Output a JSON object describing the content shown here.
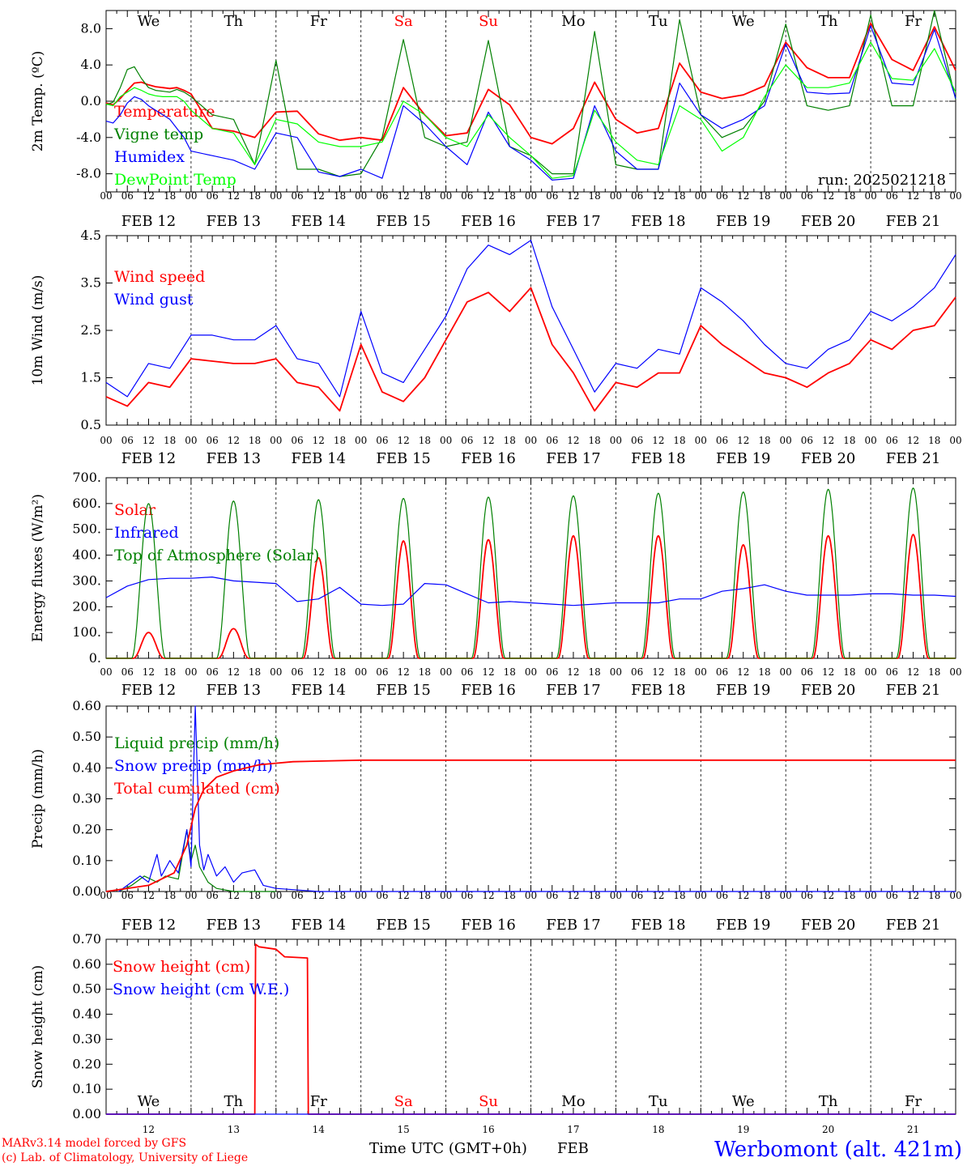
{
  "chart_data": [
    {
      "type": "line",
      "ylabel": "2m Temp. (ºC)",
      "ylim": [
        -10,
        10
      ],
      "yticks": [
        -8,
        -4,
        0,
        4,
        8
      ],
      "ytick_labels": [
        "-8.0",
        "-4.0",
        "0.0",
        "4.0",
        "8.0"
      ],
      "zero_line": true,
      "legend_placement": "top-left",
      "series": [
        {
          "name": "Temperature",
          "color": "#ff0000",
          "x": [
            0,
            0.083,
            0.167,
            0.25,
            0.333,
            0.417,
            0.5,
            0.583,
            0.667,
            0.75,
            0.833,
            0.917,
            1,
            1.25,
            1.5,
            1.75,
            2,
            2.25,
            2.5,
            2.75,
            3,
            3.25,
            3.5,
            3.75,
            4,
            4.25,
            4.5,
            4.75,
            5,
            5.25,
            5.5,
            5.75,
            6,
            6.25,
            6.5,
            6.75,
            7,
            7.25,
            7.5,
            7.75,
            8,
            8.25,
            8.5,
            8.75,
            9,
            9.25,
            9.5,
            9.75,
            10
          ],
          "values": [
            -0.2,
            -0.4,
            0.3,
            1.2,
            2,
            2.1,
            1.8,
            1.6,
            1.5,
            1.4,
            1.5,
            1.2,
            0.8,
            -3,
            -3.3,
            -4,
            -1.2,
            -1.1,
            -3.6,
            -4.3,
            -4,
            -4.3,
            1.5,
            -1.5,
            -3.8,
            -3.5,
            1.3,
            -0.4,
            -4,
            -4.7,
            -3,
            2.1,
            -2,
            -3.5,
            -3,
            4.2,
            1,
            0.3,
            0.7,
            1.7,
            6.5,
            3.7,
            2.6,
            2.6,
            8.6,
            4.6,
            3.4,
            8.2,
            3.4
          ]
        },
        {
          "name": "Vigne temp",
          "color": "#008000",
          "x": [
            0,
            0.083,
            0.167,
            0.25,
            0.333,
            0.417,
            0.5,
            0.583,
            0.667,
            0.75,
            0.833,
            0.917,
            1,
            1.25,
            1.5,
            1.75,
            2,
            2.25,
            2.5,
            2.75,
            3,
            3.25,
            3.5,
            3.75,
            4,
            4.25,
            4.5,
            4.75,
            5,
            5.25,
            5.5,
            5.75,
            6,
            6.25,
            6.5,
            6.75,
            7,
            7.25,
            7.5,
            7.75,
            8,
            8.25,
            8.5,
            8.75,
            9,
            9.25,
            9.5,
            9.75,
            10
          ],
          "values": [
            -0.4,
            -0.1,
            1.5,
            3.5,
            3.8,
            2.5,
            1.5,
            1.2,
            1.1,
            1,
            1.3,
            1,
            0.5,
            -1.5,
            -2,
            -7,
            4.5,
            -7.5,
            -7.5,
            -8.3,
            -8,
            -4,
            6.8,
            -4,
            -5,
            -4.5,
            6.7,
            -5,
            -6,
            -8,
            -8,
            7.7,
            -7,
            -7.5,
            -7.5,
            9,
            -1.5,
            -4,
            -3,
            0,
            8.5,
            -0.5,
            -1,
            -0.5,
            9.5,
            -0.5,
            -0.5,
            10,
            0.2
          ]
        },
        {
          "name": "Humidex",
          "color": "#0000ff",
          "x": [
            0,
            0.083,
            0.167,
            0.25,
            0.333,
            0.417,
            0.5,
            0.583,
            0.667,
            0.75,
            0.833,
            0.917,
            1,
            1.25,
            1.5,
            1.75,
            2,
            2.25,
            2.5,
            2.75,
            3,
            3.25,
            3.5,
            3.75,
            4,
            4.25,
            4.5,
            4.75,
            5,
            5.25,
            5.5,
            5.75,
            6,
            6.25,
            6.5,
            6.75,
            7,
            7.25,
            7.5,
            7.75,
            8,
            8.25,
            8.5,
            8.75,
            9,
            9.25,
            9.5,
            9.75,
            10
          ],
          "values": [
            -2.2,
            -2.4,
            -1.5,
            -0.2,
            0.5,
            0.2,
            -0.5,
            -1,
            -1.5,
            -2,
            -3,
            -4,
            -5.5,
            -6,
            -6.5,
            -7.5,
            -3.5,
            -4,
            -7.8,
            -8.3,
            -7.5,
            -8.5,
            -0.5,
            -2.5,
            -5,
            -7,
            -1.2,
            -5,
            -6.5,
            -8.7,
            -8.5,
            -0.5,
            -5.5,
            -7.5,
            -7.5,
            2,
            -1.5,
            -3,
            -2,
            -0.5,
            6.3,
            1,
            0.8,
            0.9,
            8.3,
            2,
            1.8,
            7.9,
            0.3
          ]
        },
        {
          "name": "DewPoint Temp",
          "color": "#00ff00",
          "x": [
            0,
            0.083,
            0.167,
            0.25,
            0.333,
            0.417,
            0.5,
            0.583,
            0.667,
            0.75,
            0.833,
            0.917,
            1,
            1.25,
            1.5,
            1.75,
            2,
            2.25,
            2.5,
            2.75,
            3,
            3.25,
            3.5,
            3.75,
            4,
            4.25,
            4.5,
            4.75,
            5,
            5.25,
            5.5,
            5.75,
            6,
            6.25,
            6.5,
            6.75,
            7,
            7.25,
            7.5,
            7.75,
            8,
            8.25,
            8.5,
            8.75,
            9,
            9.25,
            9.5,
            9.75,
            10
          ],
          "values": [
            -0.3,
            -0.5,
            0.5,
            1,
            1.5,
            1.2,
            0.8,
            0.6,
            0.5,
            0.5,
            0.5,
            0,
            -1,
            -3,
            -3.5,
            -7,
            -2,
            -2.5,
            -4.5,
            -5,
            -5,
            -4.5,
            0,
            -1.5,
            -4,
            -5,
            -1.5,
            -4,
            -6,
            -8.5,
            -8.2,
            -1,
            -4.5,
            -6.5,
            -7,
            -0.5,
            -2,
            -5.5,
            -4,
            0.5,
            4,
            1.5,
            1.5,
            2,
            6.5,
            2.5,
            2.3,
            5.8,
            1
          ]
        }
      ],
      "annotation": "run: 2025021218"
    },
    {
      "type": "line",
      "ylabel": "10m Wind (m/s)",
      "ylim": [
        0.5,
        4.5
      ],
      "yticks": [
        0.5,
        1.5,
        2.5,
        3.5,
        4.5
      ],
      "ytick_labels": [
        "0.5",
        "1.5",
        "2.5",
        "3.5",
        "4.5"
      ],
      "legend_placement": "top-left",
      "series": [
        {
          "name": "Wind speed",
          "color": "#ff0000",
          "x": [
            0,
            0.25,
            0.5,
            0.75,
            1,
            1.25,
            1.5,
            1.75,
            2,
            2.25,
            2.5,
            2.75,
            3,
            3.25,
            3.5,
            3.75,
            4,
            4.25,
            4.5,
            4.75,
            5,
            5.25,
            5.5,
            5.75,
            6,
            6.25,
            6.5,
            6.75,
            7,
            7.25,
            7.5,
            7.75,
            8,
            8.25,
            8.5,
            8.75,
            9,
            9.25,
            9.5,
            9.75,
            10
          ],
          "values": [
            1.1,
            0.9,
            1.4,
            1.3,
            1.9,
            1.85,
            1.8,
            1.8,
            1.9,
            1.4,
            1.3,
            0.8,
            2.2,
            1.2,
            1,
            1.5,
            2.3,
            3.1,
            3.3,
            2.9,
            3.4,
            2.2,
            1.6,
            0.8,
            1.4,
            1.3,
            1.6,
            1.6,
            2.6,
            2.2,
            1.9,
            1.6,
            1.5,
            1.3,
            1.6,
            1.8,
            2.3,
            2.1,
            2.5,
            2.6,
            3.2
          ]
        },
        {
          "name": "Wind gust",
          "color": "#0000ff",
          "x": [
            0,
            0.25,
            0.5,
            0.75,
            1,
            1.25,
            1.5,
            1.75,
            2,
            2.25,
            2.5,
            2.75,
            3,
            3.25,
            3.5,
            3.75,
            4,
            4.25,
            4.5,
            4.75,
            5,
            5.25,
            5.5,
            5.75,
            6,
            6.25,
            6.5,
            6.75,
            7,
            7.25,
            7.5,
            7.75,
            8,
            8.25,
            8.5,
            8.75,
            9,
            9.25,
            9.5,
            9.75,
            10
          ],
          "values": [
            1.4,
            1.1,
            1.8,
            1.7,
            2.4,
            2.4,
            2.3,
            2.3,
            2.6,
            1.9,
            1.8,
            1.1,
            2.9,
            1.6,
            1.4,
            2.1,
            2.8,
            3.8,
            4.3,
            4.1,
            4.4,
            3.0,
            2.1,
            1.2,
            1.8,
            1.7,
            2.1,
            2.0,
            3.4,
            3.1,
            2.7,
            2.2,
            1.8,
            1.7,
            2.1,
            2.3,
            2.9,
            2.7,
            3.0,
            3.4,
            4.1
          ]
        }
      ]
    },
    {
      "type": "line",
      "ylabel": "Energy fluxes (W/m²)",
      "ylim": [
        0,
        700
      ],
      "yticks": [
        0,
        100,
        200,
        300,
        400,
        500,
        600,
        700
      ],
      "ytick_labels": [
        "0.",
        "100.",
        "200.",
        "300.",
        "400.",
        "500.",
        "600.",
        "700."
      ],
      "legend_placement": "top-left",
      "series": [
        {
          "name": "Solar",
          "color": "#ff0000",
          "peaks": [
            100,
            115,
            390,
            455,
            460,
            475,
            475,
            440,
            475,
            480
          ]
        },
        {
          "name": "Infrared",
          "color": "#0000ff",
          "x": [
            0,
            0.25,
            0.5,
            0.75,
            1,
            1.25,
            1.5,
            1.75,
            2,
            2.25,
            2.5,
            2.75,
            3,
            3.25,
            3.5,
            3.75,
            4,
            4.25,
            4.5,
            4.75,
            5,
            5.25,
            5.5,
            5.75,
            6,
            6.25,
            6.5,
            6.75,
            7,
            7.25,
            7.5,
            7.75,
            8,
            8.25,
            8.5,
            8.75,
            9,
            9.25,
            9.5,
            9.75,
            10
          ],
          "values": [
            235,
            280,
            305,
            310,
            310,
            315,
            300,
            295,
            290,
            220,
            230,
            275,
            210,
            205,
            210,
            290,
            285,
            250,
            215,
            220,
            215,
            210,
            205,
            210,
            215,
            215,
            215,
            230,
            230,
            260,
            270,
            285,
            260,
            245,
            245,
            245,
            250,
            250,
            245,
            245,
            240
          ]
        },
        {
          "name": "Top of Atmosphere (Solar)",
          "color": "#008000",
          "peaks": [
            600,
            610,
            615,
            620,
            625,
            630,
            640,
            645,
            655,
            660
          ]
        }
      ]
    },
    {
      "type": "line",
      "ylabel": "Precip (mm/h)",
      "ylim": [
        0,
        0.6
      ],
      "yticks": [
        0,
        0.1,
        0.2,
        0.3,
        0.4,
        0.5,
        0.6
      ],
      "ytick_labels": [
        "0.00",
        "0.10",
        "0.20",
        "0.30",
        "0.40",
        "0.50",
        "0.60"
      ],
      "legend_placement": "top-left",
      "series": [
        {
          "name": "Liquid precip (mm/h)",
          "color": "#008000",
          "x": [
            0.15,
            0.3,
            0.45,
            0.6,
            0.7,
            0.85,
            0.95,
            1.0,
            1.05,
            1.1,
            1.2,
            1.3,
            1.5,
            2.0
          ],
          "values": [
            0,
            0.02,
            0.05,
            0.03,
            0.05,
            0.04,
            0.2,
            0.1,
            0.15,
            0.08,
            0.03,
            0.01,
            0,
            0
          ]
        },
        {
          "name": "Snow precip (mm/h)",
          "color": "#0000ff",
          "x": [
            0.15,
            0.3,
            0.4,
            0.5,
            0.6,
            0.65,
            0.75,
            0.85,
            0.95,
            1.0,
            1.05,
            1.1,
            1.15,
            1.2,
            1.3,
            1.4,
            1.5,
            1.6,
            1.75,
            1.85,
            2.0,
            2.5,
            10
          ],
          "values": [
            0,
            0.03,
            0.05,
            0.03,
            0.12,
            0.05,
            0.1,
            0.06,
            0.2,
            0.08,
            0.6,
            0.15,
            0.07,
            0.12,
            0.05,
            0.08,
            0.03,
            0.06,
            0.07,
            0.02,
            0.01,
            0,
            0
          ]
        },
        {
          "name": "Total cumulated (cm)",
          "color": "#ff0000",
          "x": [
            0,
            0.5,
            0.8,
            0.95,
            1.05,
            1.15,
            1.3,
            1.5,
            1.8,
            2.2,
            3,
            10
          ],
          "values": [
            0,
            0.02,
            0.06,
            0.15,
            0.27,
            0.33,
            0.37,
            0.39,
            0.41,
            0.42,
            0.425,
            0.425
          ]
        }
      ]
    },
    {
      "type": "line",
      "ylabel": "Snow height (cm)",
      "ylim": [
        0,
        0.7
      ],
      "yticks": [
        0,
        0.1,
        0.2,
        0.3,
        0.4,
        0.5,
        0.6,
        0.7
      ],
      "ytick_labels": [
        "0.00",
        "0.10",
        "0.20",
        "0.30",
        "0.40",
        "0.50",
        "0.60",
        "0.70"
      ],
      "legend_placement": "top-left",
      "series": [
        {
          "name": "Snow height (cm)",
          "color": "#ff0000",
          "x": [
            0,
            1.75,
            1.76,
            1.8,
            2,
            2.1,
            2.37,
            2.38,
            10
          ],
          "values": [
            0,
            0,
            0.68,
            0.67,
            0.66,
            0.63,
            0.625,
            0,
            0
          ]
        },
        {
          "name": "Snow height (cm W.E.)",
          "color": "#0000ff",
          "x": [
            0,
            10
          ],
          "values": [
            0,
            0
          ]
        }
      ]
    }
  ],
  "x_axis": {
    "hour_ticks": [
      "00",
      "06",
      "12",
      "18"
    ],
    "end_tick": "00",
    "dates": [
      "FEB 12",
      "FEB 13",
      "FEB 14",
      "FEB 15",
      "FEB 16",
      "FEB 17",
      "FEB 18",
      "FEB 19",
      "FEB 20",
      "FEB 21"
    ],
    "weekdays": [
      "We",
      "Th",
      "Fr",
      "Sa",
      "Su",
      "Mo",
      "Tu",
      "We",
      "Th",
      "Fr"
    ],
    "weekday_colors": [
      "#000000",
      "#000000",
      "#000000",
      "#ff0000",
      "#ff0000",
      "#000000",
      "#000000",
      "#000000",
      "#000000",
      "#000000"
    ],
    "bottom_day_numbers": [
      "12",
      "13",
      "14",
      "15",
      "16",
      "17",
      "18",
      "19",
      "20",
      "21"
    ],
    "bottom_label": "Time UTC (GMT+0h)",
    "bottom_month": "FEB"
  },
  "footer": {
    "credit_line1": "MARv3.14 model forced by GFS",
    "credit_line2": "(c) Lab. of Climatology, University of Liege",
    "credit_color": "#ff0000",
    "station": "Werbomont (alt. 421m)",
    "station_color": "#0000ff"
  }
}
